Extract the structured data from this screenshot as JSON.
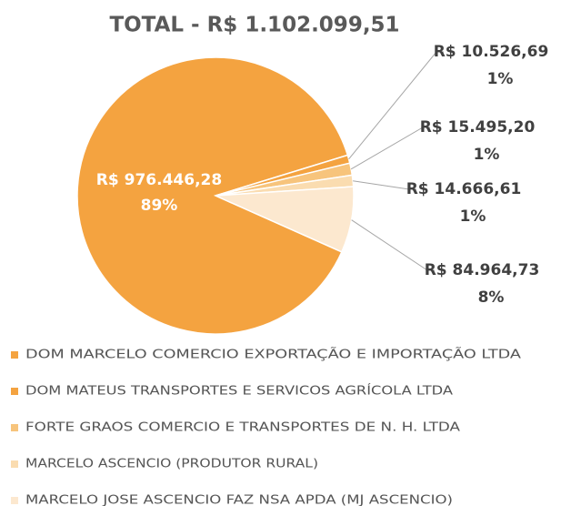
{
  "chart_data": {
    "type": "pie",
    "title": "TOTAL - R$ 1.102.099,51",
    "categories": [
      "DOM MARCELO COMERCIO EXPORTAÇÃO E IMPORTAÇÃO LTDA",
      "DOM MATEUS TRANSPORTES E SERVICOS AGRÍCOLA LTDA",
      "FORTE GRAOS COMERCIO E TRANSPORTES DE N. H. LTDA",
      "MARCELO ASCENCIO (PRODUTOR RURAL)",
      "MARCELO JOSE ASCENCIO FAZ NSA APDA (MJ ASCENCIO)"
    ],
    "values": [
      976446.28,
      10526.69,
      15495.2,
      14666.61,
      84964.73
    ],
    "value_labels": [
      "R$ 976.446,28",
      "R$ 10.526,69",
      "R$ 15.495,20",
      "R$ 14.666,61",
      "R$ 84.964,73"
    ],
    "percents": [
      89,
      1,
      1,
      1,
      8
    ],
    "percent_labels": [
      "89%",
      "1%",
      "1%",
      "1%",
      "8%"
    ],
    "colors": [
      "#f4a340",
      "#f4a340",
      "#f7c47c",
      "#fadcb0",
      "#fce8cf"
    ],
    "legend": "bottom"
  }
}
